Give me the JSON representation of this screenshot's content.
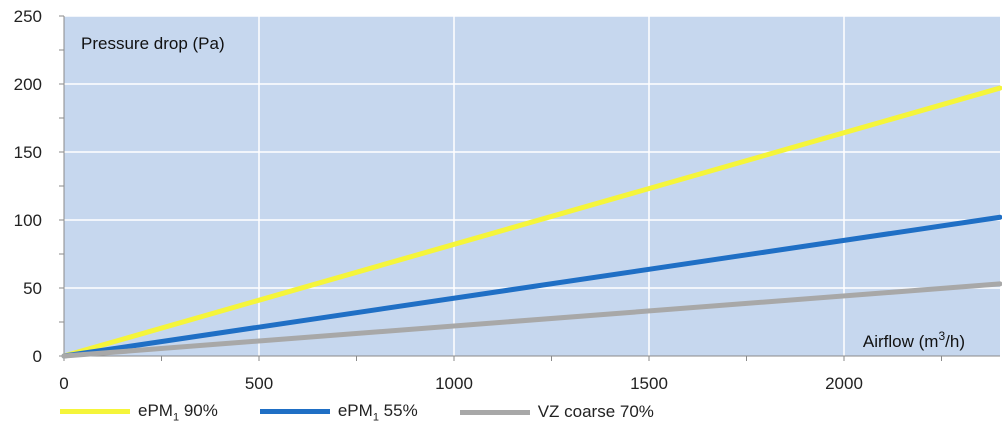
{
  "chart_data": {
    "type": "line",
    "ylabel": "Pressure drop (Pa)",
    "xlabel_parts": {
      "base": "Airflow (m",
      "sup": "3",
      "end": "/h)"
    },
    "xlim": [
      0,
      2400
    ],
    "ylim": [
      0,
      250
    ],
    "x_ticks": [
      0,
      500,
      1000,
      1500,
      2000
    ],
    "x_tick_labels": [
      "0",
      "500",
      "1000",
      "1500",
      "2000"
    ],
    "y_ticks": [
      0,
      50,
      100,
      150,
      200,
      250
    ],
    "y_tick_labels": [
      "0",
      "50",
      "100",
      "150",
      "200",
      "250"
    ],
    "grid": true,
    "legend_position": "bottom",
    "plot_background": "#c6d7ee",
    "grid_color": "#ffffff",
    "series": [
      {
        "name_parts": {
          "base": "ePM",
          "sub": "1",
          "end": " 90%"
        },
        "color": "#f5f53a",
        "x": [
          0,
          2400
        ],
        "y": [
          0,
          197
        ]
      },
      {
        "name_parts": {
          "base": "ePM",
          "sub": "1",
          "end": " 55%"
        },
        "color": "#1f6fc5",
        "x": [
          0,
          2400
        ],
        "y": [
          0,
          102
        ]
      },
      {
        "name_parts": {
          "base": "VZ coarse 70%",
          "sub": "",
          "end": ""
        },
        "color": "#a8a8a8",
        "x": [
          0,
          2400
        ],
        "y": [
          0,
          53
        ]
      }
    ]
  }
}
